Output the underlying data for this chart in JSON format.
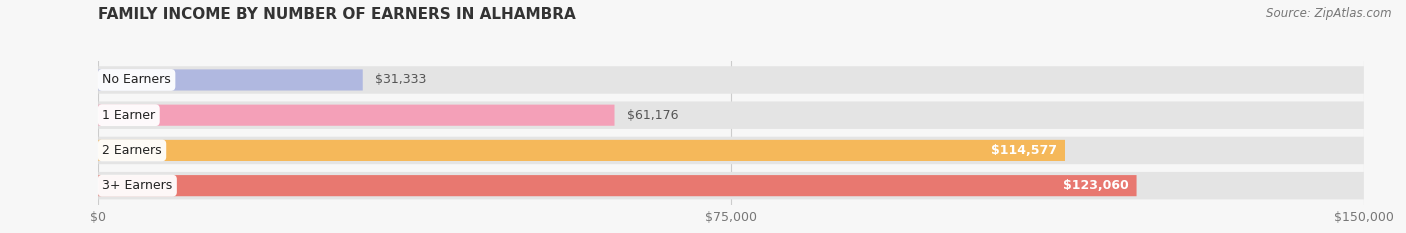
{
  "title": "FAMILY INCOME BY NUMBER OF EARNERS IN ALHAMBRA",
  "source": "Source: ZipAtlas.com",
  "categories": [
    "No Earners",
    "1 Earner",
    "2 Earners",
    "3+ Earners"
  ],
  "values": [
    31333,
    61176,
    114577,
    123060
  ],
  "bar_colors": [
    "#b0b8e0",
    "#f4a0b8",
    "#f5b85a",
    "#e87870"
  ],
  "max_value": 150000,
  "x_ticks": [
    0,
    75000,
    150000
  ],
  "x_tick_labels": [
    "$0",
    "$75,000",
    "$150,000"
  ],
  "value_labels": [
    "$31,333",
    "$61,176",
    "$114,577",
    "$123,060"
  ],
  "label_inside": [
    false,
    false,
    true,
    true
  ],
  "background_color": "#f7f7f7",
  "bar_bg_track_color": "#e4e4e4",
  "title_fontsize": 11,
  "tick_fontsize": 9,
  "label_fontsize": 9,
  "value_fontsize": 9,
  "source_fontsize": 8.5
}
